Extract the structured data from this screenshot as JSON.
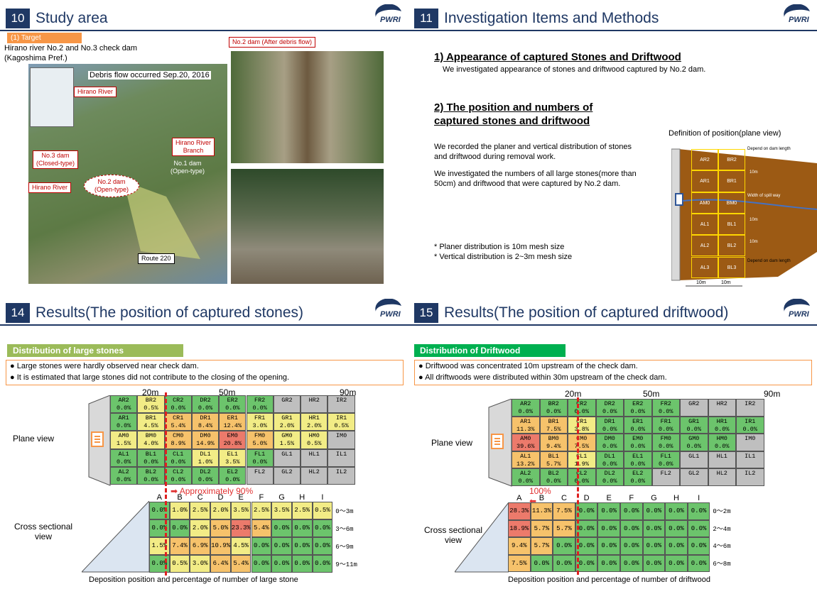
{
  "logo": "PWRI",
  "slide10": {
    "number": "10",
    "title": "Study area",
    "target_label": "(1) Target",
    "text_lines": [
      "Hirano river No.2 and No.3 check dam",
      "(Kagoshima Pref.)"
    ],
    "debris_note": "Debris flow occurred Sep.20, 2016",
    "photo_label": "No.2 dam (After debris flow)",
    "map_labels": {
      "hirano_river_top": "Hirano River",
      "branch": "Hirano River\nBranch",
      "no3": "No.3 dam\n(Closed-type)",
      "no1": "No.1 dam\n(Open-type)",
      "hirano_river_left": "Hirano River",
      "no2": "No.2 dam\n(Open-type)",
      "route": "Route 220"
    }
  },
  "slide11": {
    "number": "11",
    "title": "Investigation Items and Methods",
    "heading1": "1) Appearance of captured Stones and Driftwood",
    "text1": "We investigated appearance of stones and driftwood captured by No.2 dam.",
    "heading2": "2) The position and numbers of\ncaptured stones and driftwood",
    "para1": "We recorded the planer and vertical distribution of stones and driftwood during removal work.",
    "para2": "We investigated the numbers of all large stones(more than 50cm) and driftwood that were captured by No.2 dam.",
    "notes": [
      "* Planer distribution is 10m mesh size",
      "* Vertical distribution is 2~3m mesh size"
    ],
    "diagram_title": "Definition of position(plane view)",
    "diagram_cells": [
      [
        "AR2",
        "BR2"
      ],
      [
        "AR1",
        "BR1"
      ],
      [
        "AM0",
        "BM0"
      ],
      [
        "AL1",
        "BL1"
      ],
      [
        "AL2",
        "BL2"
      ],
      [
        "AL3",
        "BL3"
      ]
    ],
    "diagram_notes": {
      "top": "Depend on dam length",
      "r1": "10m",
      "mid": "Width of spill way",
      "l1": "10m",
      "l2": "10m",
      "bottom": "Depend on dam length",
      "x1": "10m",
      "x2": "10m"
    }
  },
  "slide14": {
    "number": "14",
    "title": "Results(The position of captured stones)",
    "section": "Distribution of large stones",
    "bullets": [
      "Large stones were hardly observed near check dam.",
      "It is estimated that large stones did not contribute to the closing of the opening."
    ],
    "scale": [
      "20m",
      "50m",
      "90m"
    ],
    "plane_label": "Plane view",
    "arrow_label": "Approximately 90%",
    "plane": [
      [
        {
          "code": "AR2",
          "pct": "0.0%"
        },
        {
          "code": "BR2",
          "pct": "0.5%"
        },
        {
          "code": "CR2",
          "pct": "0.0%"
        },
        {
          "code": "DR2",
          "pct": "0.0%"
        },
        {
          "code": "ER2",
          "pct": "0.0%"
        },
        {
          "code": "FR2",
          "pct": "0.0%"
        },
        {
          "code": "GR2"
        },
        {
          "code": "HR2"
        },
        {
          "code": "IR2"
        }
      ],
      [
        {
          "code": "AR1",
          "pct": "0.0%"
        },
        {
          "code": "BR1",
          "pct": "4.5%"
        },
        {
          "code": "CR1",
          "pct": "5.4%"
        },
        {
          "code": "DR1",
          "pct": "8.4%"
        },
        {
          "code": "ER1",
          "pct": "12.4%"
        },
        {
          "code": "FR1",
          "pct": "3.0%"
        },
        {
          "code": "GR1",
          "pct": "2.0%"
        },
        {
          "code": "HR1",
          "pct": "2.0%"
        },
        {
          "code": "IR1",
          "pct": "0.5%"
        }
      ],
      [
        {
          "code": "AM0",
          "pct": "1.5%"
        },
        {
          "code": "BM0",
          "pct": "4.0%"
        },
        {
          "code": "CM0",
          "pct": "8.9%"
        },
        {
          "code": "DM0",
          "pct": "14.9%"
        },
        {
          "code": "EM0",
          "pct": "20.8%"
        },
        {
          "code": "FM0",
          "pct": "5.0%"
        },
        {
          "code": "GM0",
          "pct": "1.5%"
        },
        {
          "code": "HM0",
          "pct": "0.5%"
        },
        {
          "code": "IM0"
        }
      ],
      [
        {
          "code": "AL1",
          "pct": "0.0%"
        },
        {
          "code": "BL1",
          "pct": "0.0%"
        },
        {
          "code": "CL1",
          "pct": "0.0%"
        },
        {
          "code": "DL1",
          "pct": "1.0%"
        },
        {
          "code": "EL1",
          "pct": "3.5%"
        },
        {
          "code": "FL1",
          "pct": "0.0%"
        },
        {
          "code": "GL1"
        },
        {
          "code": "HL1"
        },
        {
          "code": "IL1"
        }
      ],
      [
        {
          "code": "AL2",
          "pct": "0.0%"
        },
        {
          "code": "BL2",
          "pct": "0.0%"
        },
        {
          "code": "CL2",
          "pct": "0.0%"
        },
        {
          "code": "DL2",
          "pct": "0.0%"
        },
        {
          "code": "EL2",
          "pct": "0.0%"
        },
        {
          "code": "FL2"
        },
        {
          "code": "GL2"
        },
        {
          "code": "HL2"
        },
        {
          "code": "IL2"
        }
      ]
    ],
    "columns": [
      "A",
      "B",
      "C",
      "D",
      "E",
      "F",
      "G",
      "H",
      "I"
    ],
    "cross_label": "Cross sectional\nview",
    "cross": [
      {
        "depth": "0～3m",
        "cells": [
          "0.0%",
          "1.0%",
          "2.5%",
          "2.0%",
          "3.5%",
          "2.5%",
          "3.5%",
          "2.5%",
          "0.5%"
        ]
      },
      {
        "depth": "3～6m",
        "cells": [
          "0.0%",
          "0.0%",
          "2.0%",
          "5.0%",
          "23.3%",
          "5.4%",
          "0.0%",
          "0.0%",
          "0.0%"
        ]
      },
      {
        "depth": "6～9m",
        "cells": [
          "1.5%",
          "7.4%",
          "6.9%",
          "10.9%",
          "4.5%",
          "0.0%",
          "0.0%",
          "0.0%",
          "0.0%"
        ]
      },
      {
        "depth": "9～11m",
        "cells": [
          "0.0%",
          "0.5%",
          "3.0%",
          "6.4%",
          "5.4%",
          "0.0%",
          "0.0%",
          "0.0%",
          "0.0%"
        ]
      }
    ],
    "caption": "Deposition position and percentage of number of large stone"
  },
  "slide15": {
    "number": "15",
    "title": "Results(The position of captured driftwood)",
    "section": "Distribution of Driftwood",
    "bullets": [
      "Driftwood was concentrated 10m upstream of the check dam.",
      "All driftwoods were distributed within 30m upstream of the check dam."
    ],
    "scale": [
      "20m",
      "50m",
      "90m"
    ],
    "plane_label": "Plane view",
    "arrow_label": "100%",
    "plane": [
      [
        {
          "code": "AR2",
          "pct": "0.0%"
        },
        {
          "code": "BR2",
          "pct": "0.0%"
        },
        {
          "code": "CR2",
          "pct": "0.0%"
        },
        {
          "code": "DR2",
          "pct": "0.0%"
        },
        {
          "code": "ER2",
          "pct": "0.0%"
        },
        {
          "code": "FR2",
          "pct": "0.0%"
        },
        {
          "code": "GR2"
        },
        {
          "code": "HR2"
        },
        {
          "code": "IR2"
        }
      ],
      [
        {
          "code": "AR1",
          "pct": "11.3%"
        },
        {
          "code": "BR1",
          "pct": "7.5%"
        },
        {
          "code": "CR1",
          "pct": "3.8%"
        },
        {
          "code": "DR1",
          "pct": "0.0%"
        },
        {
          "code": "ER1",
          "pct": "0.0%"
        },
        {
          "code": "FR1",
          "pct": "0.0%"
        },
        {
          "code": "GR1",
          "pct": "0.0%"
        },
        {
          "code": "HR1",
          "pct": "0.0%"
        },
        {
          "code": "IR1",
          "pct": "0.0%"
        }
      ],
      [
        {
          "code": "AM0",
          "pct": "39.6%"
        },
        {
          "code": "BM0",
          "pct": "9.4%"
        },
        {
          "code": "CM0",
          "pct": "7.5%"
        },
        {
          "code": "DM0",
          "pct": "0.0%"
        },
        {
          "code": "EM0",
          "pct": "0.0%"
        },
        {
          "code": "FM0",
          "pct": "0.0%"
        },
        {
          "code": "GM0",
          "pct": "0.0%"
        },
        {
          "code": "HM0",
          "pct": "0.0%"
        },
        {
          "code": "IM0"
        }
      ],
      [
        {
          "code": "AL1",
          "pct": "13.2%"
        },
        {
          "code": "BL1",
          "pct": "5.7%"
        },
        {
          "code": "CL1",
          "pct": "1.9%"
        },
        {
          "code": "DL1",
          "pct": "0.0%"
        },
        {
          "code": "EL1",
          "pct": "0.0%"
        },
        {
          "code": "FL1",
          "pct": "0.0%"
        },
        {
          "code": "GL1"
        },
        {
          "code": "HL1"
        },
        {
          "code": "IL1"
        }
      ],
      [
        {
          "code": "AL2",
          "pct": "0.0%"
        },
        {
          "code": "BL2",
          "pct": "0.0%"
        },
        {
          "code": "CL2",
          "pct": "0.0%"
        },
        {
          "code": "DL2",
          "pct": "0.0%"
        },
        {
          "code": "EL2",
          "pct": "0.0%"
        },
        {
          "code": "FL2"
        },
        {
          "code": "GL2"
        },
        {
          "code": "HL2"
        },
        {
          "code": "IL2"
        }
      ]
    ],
    "columns": [
      "A",
      "B",
      "C",
      "D",
      "E",
      "F",
      "G",
      "H",
      "I"
    ],
    "cross_label": "Cross sectional\nview",
    "cross": [
      {
        "depth": "0～2m",
        "cells": [
          "28.3%",
          "11.3%",
          "7.5%",
          "0.0%",
          "0.0%",
          "0.0%",
          "0.0%",
          "0.0%",
          "0.0%"
        ]
      },
      {
        "depth": "2～4m",
        "cells": [
          "18.9%",
          "5.7%",
          "5.7%",
          "0.0%",
          "0.0%",
          "0.0%",
          "0.0%",
          "0.0%",
          "0.0%"
        ]
      },
      {
        "depth": "4～6m",
        "cells": [
          "9.4%",
          "5.7%",
          "0.0%",
          "0.0%",
          "0.0%",
          "0.0%",
          "0.0%",
          "0.0%",
          "0.0%"
        ]
      },
      {
        "depth": "6～8m",
        "cells": [
          "7.5%",
          "0.0%",
          "0.0%",
          "0.0%",
          "0.0%",
          "0.0%",
          "0.0%",
          "0.0%",
          "0.0%"
        ]
      }
    ],
    "caption": "Deposition position and percentage of number of driftwood"
  }
}
